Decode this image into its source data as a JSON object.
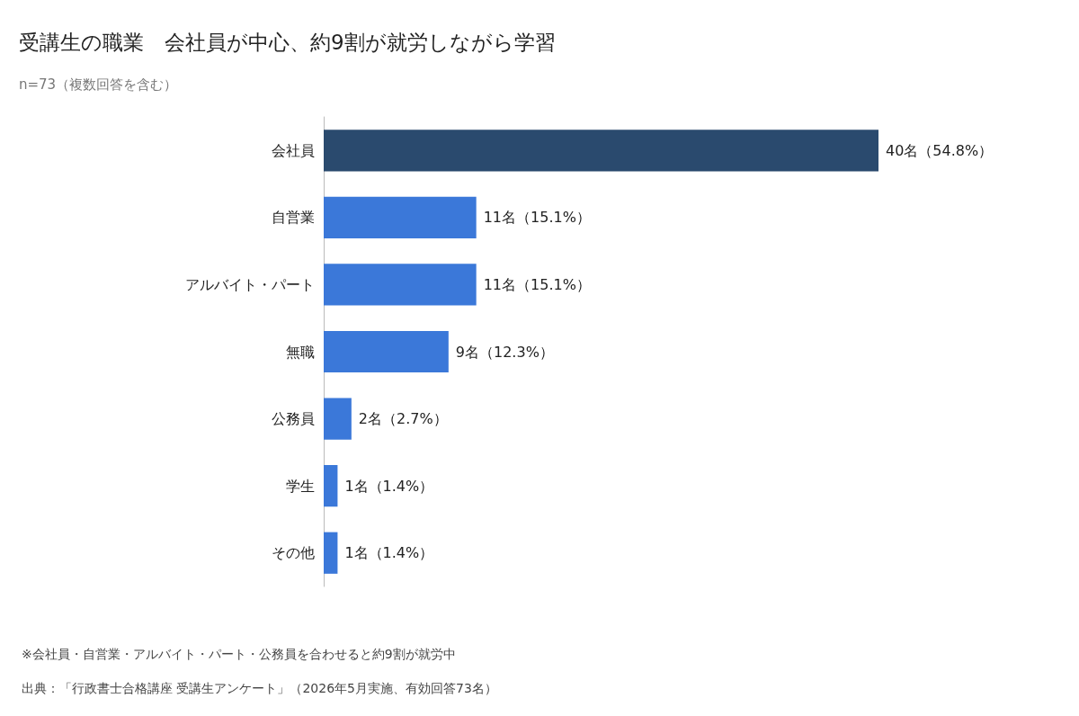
{
  "chart_data": {
    "type": "bar",
    "orientation": "horizontal",
    "title": "受講生の職業　会社員が中心、約9割が就労しながら学習",
    "subtitle": "n=73（複数回答を含む）",
    "categories": [
      "会社員",
      "自営業",
      "アルバイト・パート",
      "無職",
      "公務員",
      "学生",
      "その他"
    ],
    "values": [
      40,
      11,
      11,
      9,
      2,
      1,
      1
    ],
    "value_labels": [
      "40名（54.8%）",
      "11名（15.1%）",
      "11名（15.1%）",
      "9名（12.3%）",
      "2名（2.7%）",
      "1名（1.4%）",
      "1名（1.4%）"
    ],
    "colors": [
      "#2a4a6e",
      "#3b78d9",
      "#3b78d9",
      "#3b78d9",
      "#3b78d9",
      "#3b78d9",
      "#3b78d9"
    ],
    "annotations": [
      "※会社員・自営業・アルバイト・パート・公務員を合わせると約9割が就労中",
      "出典：「行政書士合格講座 受講生アンケート」（2026年5月実施、有効回答73名）"
    ]
  }
}
